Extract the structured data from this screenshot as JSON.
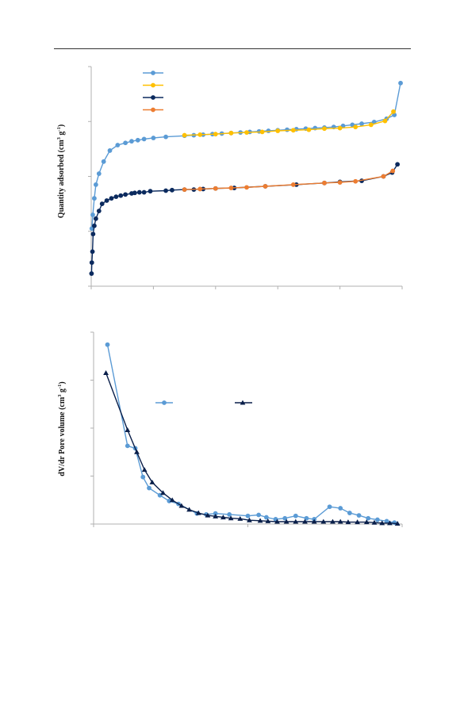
{
  "colors": {
    "light_blue": "#5b9bd5",
    "yellow": "#ffc000",
    "navy": "#0b2a5e",
    "orange": "#ed7d31",
    "dark_navy": "#0a1f4a",
    "axis": "#b0b0b0"
  },
  "chart_data": [
    {
      "type": "line",
      "ylabel_main": "Quantity adsorbed (cm",
      "ylabel_sup1": "3",
      "ylabel_mid": " g",
      "ylabel_sup2": "-1",
      "ylabel_end": ")",
      "xlim": [
        0,
        1
      ],
      "ylim": [
        0,
        4
      ],
      "legend_position": "top-left",
      "series": [
        {
          "key": "s1",
          "color": "#5b9bd5",
          "x": [
            0.002,
            0.005,
            0.01,
            0.015,
            0.025,
            0.04,
            0.06,
            0.085,
            0.11,
            0.13,
            0.15,
            0.17,
            0.2,
            0.24,
            0.3,
            0.33,
            0.36,
            0.39,
            0.42,
            0.45,
            0.48,
            0.51,
            0.54,
            0.57,
            0.6,
            0.63,
            0.66,
            0.69,
            0.72,
            0.75,
            0.78,
            0.81,
            0.84,
            0.87,
            0.91,
            0.95,
            0.975,
            0.995
          ],
          "y": [
            1.05,
            1.3,
            1.6,
            1.85,
            2.05,
            2.27,
            2.47,
            2.57,
            2.61,
            2.64,
            2.66,
            2.68,
            2.7,
            2.72,
            2.74,
            2.75,
            2.76,
            2.77,
            2.78,
            2.79,
            2.8,
            2.81,
            2.82,
            2.83,
            2.84,
            2.85,
            2.86,
            2.87,
            2.88,
            2.89,
            2.9,
            2.92,
            2.94,
            2.96,
            2.99,
            3.05,
            3.12,
            3.7
          ]
        },
        {
          "key": "s2",
          "color": "#ffc000",
          "x": [
            0.3,
            0.35,
            0.4,
            0.45,
            0.5,
            0.55,
            0.6,
            0.65,
            0.7,
            0.75,
            0.8,
            0.85,
            0.9,
            0.945,
            0.972
          ],
          "y": [
            2.75,
            2.76,
            2.77,
            2.79,
            2.8,
            2.81,
            2.83,
            2.84,
            2.85,
            2.87,
            2.88,
            2.9,
            2.94,
            3.01,
            3.18
          ]
        },
        {
          "key": "s3",
          "color": "#0b2a5e",
          "x": [
            0.001,
            0.002,
            0.004,
            0.006,
            0.01,
            0.015,
            0.025,
            0.035,
            0.05,
            0.065,
            0.08,
            0.095,
            0.11,
            0.13,
            0.14,
            0.155,
            0.17,
            0.19,
            0.24,
            0.26,
            0.3,
            0.33,
            0.36,
            0.4,
            0.46,
            0.56,
            0.66,
            0.75,
            0.8,
            0.87,
            0.94,
            0.968,
            0.985
          ],
          "y": [
            0.23,
            0.43,
            0.63,
            0.95,
            1.1,
            1.23,
            1.37,
            1.5,
            1.56,
            1.6,
            1.63,
            1.65,
            1.67,
            1.69,
            1.7,
            1.71,
            1.71,
            1.73,
            1.74,
            1.75,
            1.76,
            1.76,
            1.77,
            1.78,
            1.79,
            1.82,
            1.85,
            1.88,
            1.9,
            1.92,
            2.0,
            2.07,
            2.22
          ]
        },
        {
          "key": "s4",
          "color": "#ed7d31",
          "x": [
            0.3,
            0.35,
            0.4,
            0.45,
            0.5,
            0.56,
            0.65,
            0.75,
            0.8,
            0.85,
            0.94,
            0.97
          ],
          "y": [
            1.76,
            1.77,
            1.78,
            1.79,
            1.8,
            1.82,
            1.85,
            1.88,
            1.89,
            1.91,
            2.0,
            2.1
          ]
        }
      ]
    },
    {
      "type": "line",
      "ylabel_main": "dV/dr Pore volume (cm",
      "ylabel_sup1": "3",
      "ylabel_mid": " g",
      "ylabel_sup2": "-1",
      "ylabel_end": ")",
      "xlim": [
        0,
        1
      ],
      "ylim": [
        0,
        4
      ],
      "legend_position": "middle",
      "series": [
        {
          "key": "d1",
          "color": "#5b9bd5",
          "marker": "circle",
          "x": [
            0.045,
            0.11,
            0.135,
            0.16,
            0.18,
            0.215,
            0.245,
            0.275,
            0.335,
            0.365,
            0.395,
            0.44,
            0.5,
            0.535,
            0.56,
            0.59,
            0.62,
            0.655,
            0.69,
            0.715,
            0.765,
            0.8,
            0.83,
            0.86,
            0.89,
            0.92,
            0.95,
            0.975
          ],
          "y": [
            3.74,
            1.63,
            1.58,
            0.98,
            0.75,
            0.6,
            0.48,
            0.42,
            0.22,
            0.2,
            0.22,
            0.2,
            0.17,
            0.19,
            0.14,
            0.1,
            0.12,
            0.17,
            0.12,
            0.1,
            0.36,
            0.33,
            0.23,
            0.18,
            0.12,
            0.09,
            0.06,
            0.03
          ]
        },
        {
          "key": "d2",
          "color": "#0a1f4a",
          "marker": "triangle",
          "x": [
            0.04,
            0.11,
            0.14,
            0.165,
            0.19,
            0.225,
            0.255,
            0.285,
            0.31,
            0.34,
            0.37,
            0.395,
            0.42,
            0.445,
            0.475,
            0.505,
            0.54,
            0.565,
            0.595,
            0.625,
            0.655,
            0.685,
            0.715,
            0.745,
            0.775,
            0.8,
            0.825,
            0.855,
            0.885,
            0.91,
            0.935,
            0.96,
            0.985
          ],
          "y": [
            3.15,
            1.96,
            1.5,
            1.13,
            0.87,
            0.65,
            0.5,
            0.38,
            0.3,
            0.23,
            0.18,
            0.16,
            0.14,
            0.12,
            0.11,
            0.08,
            0.07,
            0.06,
            0.05,
            0.05,
            0.05,
            0.05,
            0.05,
            0.05,
            0.05,
            0.05,
            0.04,
            0.04,
            0.04,
            0.03,
            0.02,
            0.02,
            0.01
          ]
        }
      ]
    }
  ]
}
